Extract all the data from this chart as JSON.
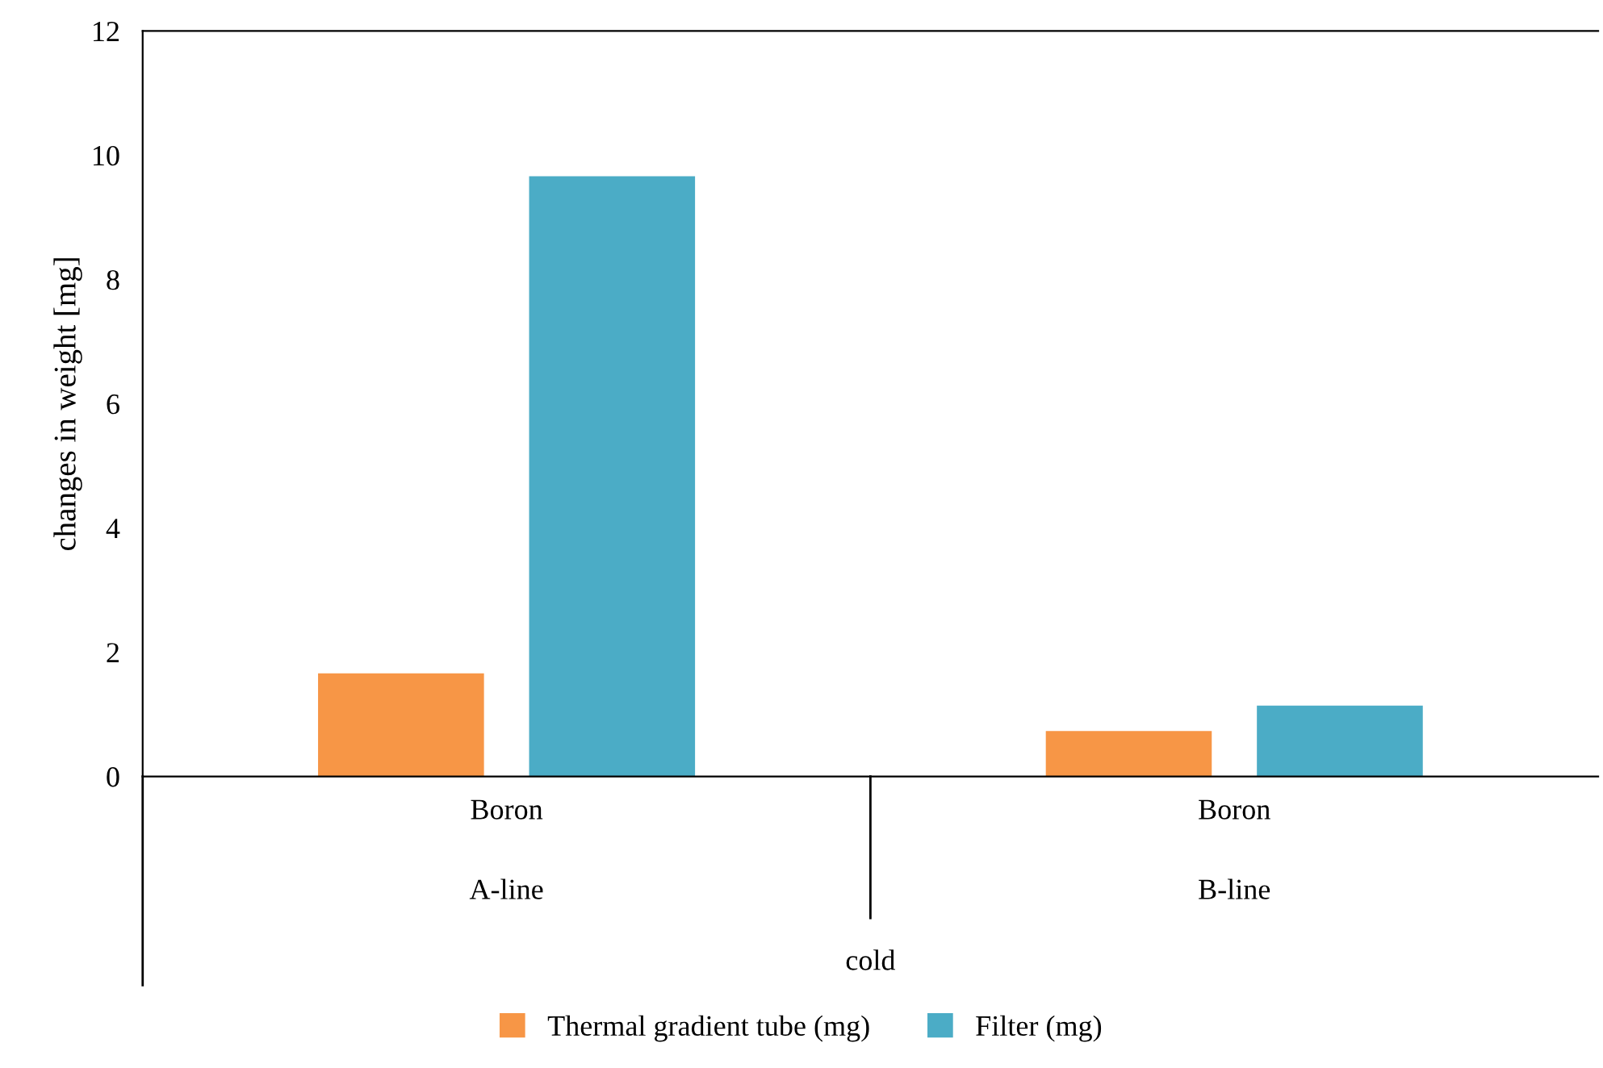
{
  "chart_data": {
    "type": "bar",
    "ylabel": "changes in weight [mg]",
    "categories": [
      "Boron",
      "Boron"
    ],
    "series": [
      {
        "name": "Thermal gradient tube (mg)",
        "color": "#f79646",
        "values": [
          1.66,
          0.73
        ]
      },
      {
        "name": "Filter (mg)",
        "color": "#4bacc6",
        "values": [
          9.66,
          1.14
        ]
      }
    ],
    "annotations": [
      "A-line",
      "B-line",
      "cold"
    ],
    "ylim": [
      0,
      12
    ],
    "yticks": [
      0,
      2,
      4,
      6,
      8,
      10,
      12
    ],
    "grid": false,
    "legend": "bottom"
  }
}
